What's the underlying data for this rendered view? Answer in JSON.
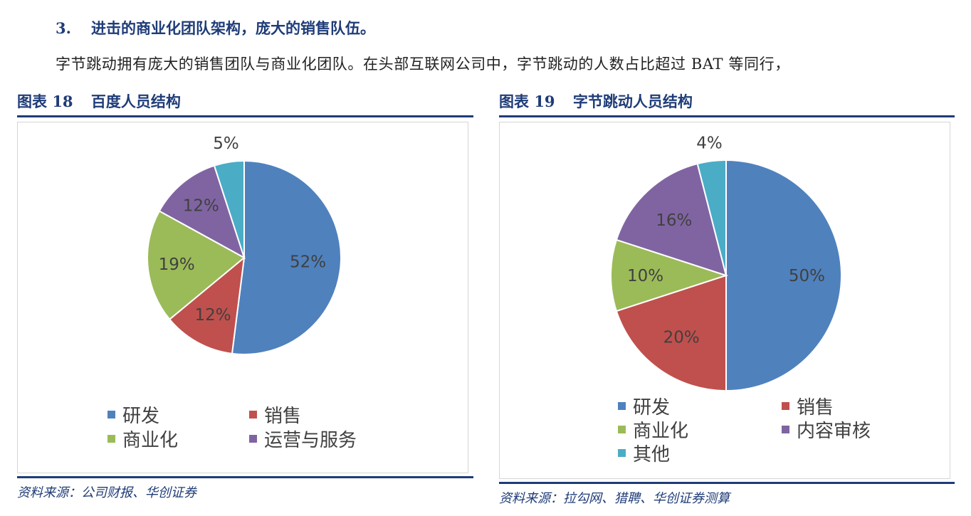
{
  "section": {
    "number": "3.",
    "title": "进击的商业化团队架构，庞大的销售队伍。"
  },
  "paragraph": "字节跳动拥有庞大的销售团队与商业化团队。在头部互联网公司中，字节跳动的人数占比超过 BAT 等同行，",
  "figures": [
    {
      "label": "图表",
      "number": "18",
      "title": "百度人员结构",
      "source": "资料来源：公司财报、华创证券"
    },
    {
      "label": "图表",
      "number": "19",
      "title": "字节跳动人员结构",
      "source": "资料来源：拉勾网、猎聘、华创证券测算"
    }
  ],
  "chart_data": [
    {
      "type": "pie",
      "title": "",
      "categories": [
        "研发",
        "销售",
        "商业化",
        "运营与服务",
        ""
      ],
      "values": [
        52,
        12,
        19,
        12,
        5
      ],
      "labels": [
        "52%",
        "12%",
        "19%",
        "12%",
        "5%"
      ],
      "colors": [
        "#4f81bd",
        "#c0504d",
        "#9bbb59",
        "#8064a2",
        "#4bacc6"
      ],
      "legend": [
        "研发",
        "销售",
        "商业化",
        "运营与服务"
      ],
      "legend_placement": "bottom"
    },
    {
      "type": "pie",
      "title": "",
      "categories": [
        "研发",
        "销售",
        "商业化",
        "内容审核",
        "其他"
      ],
      "values": [
        50,
        20,
        10,
        16,
        4
      ],
      "labels": [
        "50%",
        "20%",
        "10%",
        "16%",
        "4%"
      ],
      "colors": [
        "#4f81bd",
        "#c0504d",
        "#9bbb59",
        "#8064a2",
        "#4bacc6"
      ],
      "legend": [
        "研发",
        "销售",
        "商业化",
        "内容审核",
        "其他"
      ],
      "legend_placement": "bottom"
    }
  ]
}
